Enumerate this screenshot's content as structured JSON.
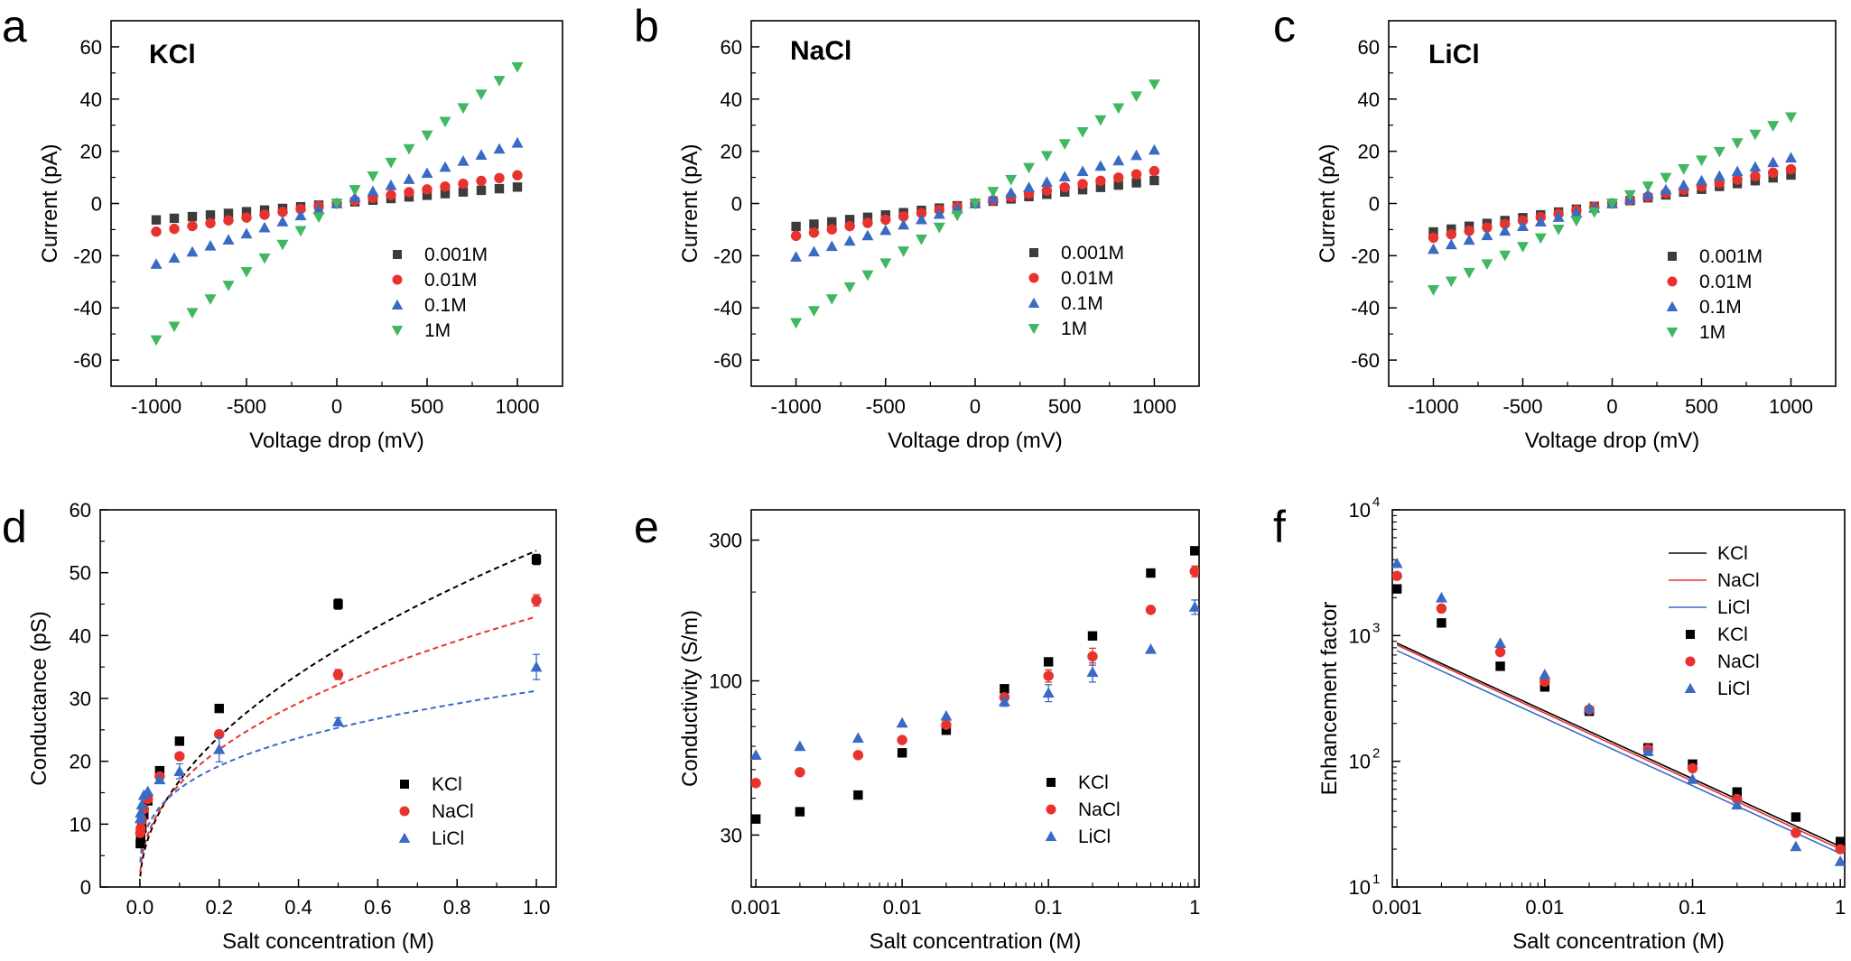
{
  "colors": {
    "KCl": "#000000",
    "NaCl": "#e8322d",
    "LiCl": "#3a6bc4",
    "0.001M": "#3c3c3c",
    "0.01M": "#e8322d",
    "0.1M": "#3a6bc4",
    "1M": "#3fb861"
  },
  "chart_data": [
    {
      "letter": "a",
      "type": "scatter",
      "title": "KCl",
      "xlabel": "Voltage drop (mV)",
      "ylabel": "Current (pA)",
      "xlim": [
        -1250,
        1250
      ],
      "ylim": [
        -70,
        70
      ],
      "xticks": [
        -1000,
        -500,
        0,
        500,
        1000
      ],
      "xtick_labels": [
        "-1000",
        "-500",
        "0",
        "500",
        "1000"
      ],
      "yticks": [
        -60,
        -40,
        -20,
        0,
        20,
        40,
        60
      ],
      "ytick_labels": [
        "-60",
        "-40",
        "-20",
        "0",
        "20",
        "40",
        "60"
      ],
      "x": [
        -1000,
        -900,
        -800,
        -700,
        -600,
        -500,
        -400,
        -300,
        -200,
        -100,
        0,
        100,
        200,
        300,
        400,
        500,
        600,
        700,
        800,
        900,
        1000
      ],
      "series": [
        {
          "name": "0.001M",
          "marker": "square",
          "slope": 0.0063
        },
        {
          "name": "0.01M",
          "marker": "circle",
          "slope": 0.0108
        },
        {
          "name": "0.1M",
          "marker": "triangle",
          "slope": 0.0232
        },
        {
          "name": "1M",
          "marker": "down-triangle",
          "slope": 0.0523
        }
      ]
    },
    {
      "letter": "b",
      "type": "scatter",
      "title": "NaCl",
      "xlabel": "Voltage drop (mV)",
      "ylabel": "Current (pA)",
      "xlim": [
        -1250,
        1250
      ],
      "ylim": [
        -70,
        70
      ],
      "xticks": [
        -1000,
        -500,
        0,
        500,
        1000
      ],
      "xtick_labels": [
        "-1000",
        "-500",
        "0",
        "500",
        "1000"
      ],
      "yticks": [
        -60,
        -40,
        -20,
        0,
        20,
        40,
        60
      ],
      "ytick_labels": [
        "-60",
        "-40",
        "-20",
        "0",
        "20",
        "40",
        "60"
      ],
      "x": [
        -1000,
        -900,
        -800,
        -700,
        -600,
        -500,
        -400,
        -300,
        -200,
        -100,
        0,
        100,
        200,
        300,
        400,
        500,
        600,
        700,
        800,
        900,
        1000
      ],
      "series": [
        {
          "name": "0.001M",
          "marker": "square",
          "slope": 0.0088
        },
        {
          "name": "0.01M",
          "marker": "circle",
          "slope": 0.0124
        },
        {
          "name": "0.1M",
          "marker": "triangle",
          "slope": 0.0205
        },
        {
          "name": "1M",
          "marker": "down-triangle",
          "slope": 0.0457
        }
      ]
    },
    {
      "letter": "c",
      "type": "scatter",
      "title": "LiCl",
      "xlabel": "Voltage drop (mV)",
      "ylabel": "Current (pA)",
      "xlim": [
        -1250,
        1250
      ],
      "ylim": [
        -70,
        70
      ],
      "xticks": [
        -1000,
        -500,
        0,
        500,
        1000
      ],
      "xtick_labels": [
        "-1000",
        "-500",
        "0",
        "500",
        "1000"
      ],
      "yticks": [
        -60,
        -40,
        -20,
        0,
        20,
        40,
        60
      ],
      "ytick_labels": [
        "-60",
        "-40",
        "-20",
        "0",
        "20",
        "40",
        "60"
      ],
      "x": [
        -1000,
        -900,
        -800,
        -700,
        -600,
        -500,
        -400,
        -300,
        -200,
        -100,
        0,
        100,
        200,
        300,
        400,
        500,
        600,
        700,
        800,
        900,
        1000
      ],
      "series": [
        {
          "name": "0.001M",
          "marker": "square",
          "slope": 0.0109
        },
        {
          "name": "0.01M",
          "marker": "circle",
          "slope": 0.0131
        },
        {
          "name": "0.1M",
          "marker": "triangle",
          "slope": 0.0175
        },
        {
          "name": "1M",
          "marker": "down-triangle",
          "slope": 0.0331
        }
      ]
    },
    {
      "letter": "d",
      "type": "scatter",
      "xlabel": "Salt concentration (M)",
      "ylabel": "Conductance (pS)",
      "xlim": [
        -0.1,
        1.05
      ],
      "ylim": [
        0,
        60
      ],
      "xticks": [
        0,
        0.2,
        0.4,
        0.6,
        0.8,
        1.0
      ],
      "xtick_labels": [
        "0.0",
        "0.2",
        "0.4",
        "0.6",
        "0.8",
        "1.0"
      ],
      "yticks": [
        0,
        10,
        20,
        30,
        40,
        50,
        60
      ],
      "ytick_labels": [
        "0",
        "10",
        "20",
        "30",
        "40",
        "50",
        "60"
      ],
      "x": [
        0.001,
        0.002,
        0.005,
        0.01,
        0.02,
        0.05,
        0.1,
        0.2,
        0.5,
        1.0
      ],
      "series": [
        {
          "name": "KCl",
          "marker": "square",
          "values": [
            6.9,
            7.9,
            9.4,
            11.5,
            13.7,
            18.5,
            23.2,
            28.4,
            45.0,
            52.1
          ],
          "errors": [
            0,
            0,
            0,
            0,
            0,
            0,
            0,
            0,
            0.8,
            0.8
          ]
        },
        {
          "name": "NaCl",
          "marker": "circle",
          "values": [
            8.6,
            9.3,
            10.6,
            12.4,
            14.0,
            17.6,
            20.8,
            24.3,
            33.8,
            45.6
          ],
          "errors": [
            0,
            0,
            0,
            0,
            0,
            0,
            0,
            0,
            0.8,
            0.9
          ]
        },
        {
          "name": "LiCl",
          "marker": "triangle",
          "values": [
            10.9,
            11.8,
            13.1,
            14.6,
            15.2,
            17.1,
            18.4,
            21.9,
            26.3,
            35.0
          ],
          "errors": [
            0,
            0,
            0,
            0,
            0,
            0,
            1.2,
            2.0,
            0.6,
            2.0
          ]
        }
      ],
      "fits": [
        {
          "name": "KCl",
          "prefactor": 53.5,
          "exponent": 0.5
        },
        {
          "name": "NaCl",
          "prefactor": 43.0,
          "exponent": 0.42
        },
        {
          "name": "LiCl",
          "prefactor": 31.2,
          "exponent": 0.3
        }
      ]
    },
    {
      "letter": "e",
      "type": "scatter",
      "scale": "log-log",
      "xlabel": "Salt concentration (M)",
      "ylabel": "Conductivity (S/m)",
      "xlim": [
        0.00093,
        1.07
      ],
      "ylim": [
        20,
        380
      ],
      "xticks": [
        0.001,
        0.01,
        0.1,
        1
      ],
      "xtick_labels": [
        "0.001",
        "0.01",
        "0.1",
        "1"
      ],
      "yticks": [
        30,
        100,
        300
      ],
      "ytick_labels": [
        "30",
        "100",
        "300"
      ],
      "x": [
        0.001,
        0.002,
        0.005,
        0.01,
        0.02,
        0.05,
        0.1,
        0.2,
        0.5,
        1.0
      ],
      "series": [
        {
          "name": "KCl",
          "marker": "square",
          "values": [
            34,
            36,
            41,
            57,
            68,
            94,
            116,
            142,
            232,
            276
          ],
          "errors": [
            0,
            0,
            0,
            0,
            0,
            0,
            0,
            0,
            0,
            0
          ]
        },
        {
          "name": "NaCl",
          "marker": "circle",
          "values": [
            45,
            49,
            56,
            63,
            71,
            88,
            104,
            121,
            174,
            235
          ],
          "errors": [
            0,
            0,
            0,
            0,
            0,
            0,
            5,
            8,
            0,
            10
          ]
        },
        {
          "name": "LiCl",
          "marker": "triangle",
          "values": [
            56,
            60,
            64,
            72,
            76,
            85,
            91,
            107,
            128,
            178
          ],
          "errors": [
            0,
            0,
            0,
            0,
            0,
            3,
            6,
            8,
            0,
            10
          ]
        }
      ]
    },
    {
      "letter": "f",
      "type": "scatter",
      "scale": "log-log",
      "xlabel": "Salt concentration (M)",
      "ylabel": "Enhancement factor",
      "xlim": [
        0.00093,
        1.07
      ],
      "ylim": [
        10,
        10000
      ],
      "xticks": [
        0.001,
        0.01,
        0.1,
        1
      ],
      "xtick_labels": [
        "0.001",
        "0.01",
        "0.1",
        "1"
      ],
      "yticks": [
        10,
        100,
        1000,
        10000
      ],
      "ytick_labels": [
        "10",
        "10",
        "10",
        "10"
      ],
      "ytick_exponents": [
        "1",
        "2",
        "3",
        "4"
      ],
      "x": [
        0.001,
        0.002,
        0.005,
        0.01,
        0.02,
        0.05,
        0.1,
        0.2,
        0.5,
        1.0
      ],
      "lines": [
        {
          "name": "KCl",
          "y_at_0.001": 870,
          "y_at_1": 21
        },
        {
          "name": "NaCl",
          "y_at_0.001": 840,
          "y_at_1": 20
        },
        {
          "name": "LiCl",
          "y_at_0.001": 760,
          "y_at_1": 18.5
        }
      ],
      "series": [
        {
          "name": "KCl",
          "marker": "square",
          "values": [
            2350,
            1260,
            570,
            390,
            250,
            128,
            95,
            57,
            36,
            23
          ]
        },
        {
          "name": "NaCl",
          "marker": "circle",
          "values": [
            2980,
            1640,
            740,
            430,
            258,
            125,
            88,
            50,
            27,
            20
          ]
        },
        {
          "name": "LiCl",
          "marker": "triangle",
          "values": [
            3750,
            2000,
            870,
            490,
            265,
            120,
            72,
            45,
            21,
            16
          ]
        }
      ]
    }
  ]
}
